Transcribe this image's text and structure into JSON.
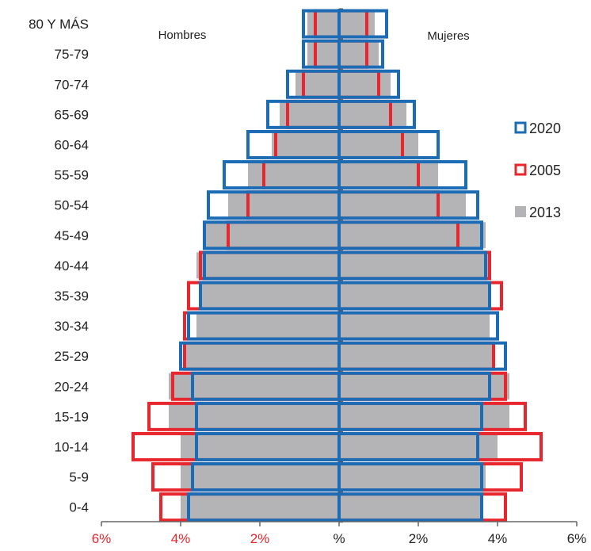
{
  "chart_data": {
    "type": "bar",
    "orientation": "horizontal-pyramid",
    "categories": [
      "80 Y MÁS",
      "75-79",
      "70-74",
      "65-69",
      "60-64",
      "55-59",
      "50-54",
      "45-49",
      "40-44",
      "35-39",
      "30-34",
      "25-29",
      "20-24",
      "15-19",
      "10-14",
      "5-9",
      "0-4"
    ],
    "left_label": "Hombres",
    "right_label": "Mujeres",
    "x_ticks": [
      {
        "value": -6,
        "label": "6%",
        "color": "#e8262d"
      },
      {
        "value": -4,
        "label": "4%",
        "color": "#e8262d"
      },
      {
        "value": -2,
        "label": "2%",
        "color": "#e8262d"
      },
      {
        "value": 0,
        "label": "%",
        "color": "#222222"
      },
      {
        "value": 2,
        "label": "2%",
        "color": "#222222"
      },
      {
        "value": 4,
        "label": "4%",
        "color": "#222222"
      },
      {
        "value": 6,
        "label": "6%",
        "color": "#222222"
      }
    ],
    "xlim": [
      -6,
      6
    ],
    "series": [
      {
        "name": "2013",
        "style": "filled",
        "color": "#b4b4b6",
        "hombres": [
          0.8,
          0.8,
          1.1,
          1.5,
          1.7,
          2.3,
          2.8,
          3.4,
          3.6,
          3.5,
          3.6,
          3.9,
          4.3,
          4.3,
          4.0,
          4.0,
          4.0
        ],
        "mujeres": [
          0.9,
          1.0,
          1.3,
          1.7,
          2.0,
          2.5,
          3.2,
          3.7,
          3.8,
          3.8,
          3.8,
          3.9,
          4.3,
          4.3,
          4.0,
          3.7,
          3.6
        ]
      },
      {
        "name": "2005",
        "style": "outline",
        "color": "#e8262d",
        "hombres": [
          0.6,
          0.6,
          0.9,
          1.3,
          1.6,
          1.9,
          2.3,
          2.8,
          3.5,
          3.8,
          3.9,
          3.9,
          4.2,
          4.8,
          5.2,
          4.7,
          4.5
        ],
        "mujeres": [
          0.7,
          0.7,
          1.0,
          1.3,
          1.6,
          2.0,
          2.5,
          3.0,
          3.8,
          4.1,
          4.0,
          3.9,
          4.2,
          4.7,
          5.1,
          4.6,
          4.2
        ]
      },
      {
        "name": "2020",
        "style": "outline",
        "color": "#1b6bb5",
        "hombres": [
          0.9,
          0.9,
          1.3,
          1.8,
          2.3,
          2.9,
          3.3,
          3.4,
          3.4,
          3.5,
          3.8,
          4.0,
          3.7,
          3.6,
          3.6,
          3.7,
          3.8
        ],
        "mujeres": [
          1.2,
          1.1,
          1.5,
          1.9,
          2.5,
          3.2,
          3.5,
          3.6,
          3.7,
          3.8,
          4.0,
          4.2,
          3.8,
          3.6,
          3.5,
          3.6,
          3.6
        ]
      }
    ],
    "legend": {
      "placement": "right",
      "items": [
        {
          "label": "2020",
          "color": "#1b6bb5",
          "style": "outline"
        },
        {
          "label": "2005",
          "color": "#e8262d",
          "style": "outline"
        },
        {
          "label": "2013",
          "color": "#b4b4b6",
          "style": "filled"
        }
      ]
    }
  }
}
